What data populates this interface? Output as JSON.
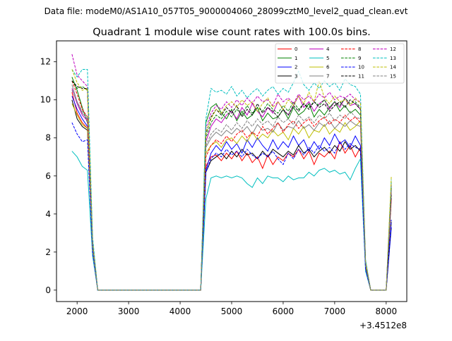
{
  "suptitle": "Data file: modeM0/AS1A10_057T05_9000004060_28099cztM0_level2_quad_clean.evt",
  "chart_data": {
    "type": "line",
    "title": "Quadrant 1 module wise count rates with 100.0s bins.",
    "xlabel": "",
    "ylabel": "",
    "x_offset_label": "+3.4512e8",
    "xlim": [
      1600,
      8400
    ],
    "ylim": [
      -0.6,
      13.1
    ],
    "xticks": [
      2000,
      3000,
      4000,
      5000,
      6000,
      7000,
      8000
    ],
    "yticks": [
      0,
      2,
      4,
      6,
      8,
      10,
      12
    ],
    "grid": false,
    "legend_position": "top-right",
    "legend_columns": 4,
    "x": [
      1900,
      2000,
      2100,
      2200,
      2300,
      2400,
      3000,
      4000,
      4400,
      4500,
      4600,
      4700,
      4800,
      4900,
      5000,
      5100,
      5200,
      5300,
      5400,
      5500,
      5600,
      5700,
      5800,
      5900,
      6000,
      6100,
      6200,
      6300,
      6400,
      6500,
      6600,
      6700,
      6800,
      6900,
      7000,
      7100,
      7200,
      7300,
      7400,
      7500,
      7600,
      7700,
      7800,
      7900,
      8000,
      8100
    ],
    "series": [
      {
        "name": "0",
        "color": "#ff0000",
        "dash": "solid",
        "values": [
          10.4,
          9.3,
          8.8,
          8.5,
          2.3,
          0.0,
          0.0,
          0.0,
          0.0,
          6.5,
          7.0,
          7.1,
          6.8,
          7.2,
          6.9,
          7.3,
          6.8,
          7.2,
          6.7,
          7.0,
          6.4,
          7.1,
          6.6,
          7.0,
          6.8,
          7.2,
          7.0,
          7.4,
          6.9,
          7.3,
          6.6,
          7.2,
          7.0,
          7.3,
          6.9,
          7.8,
          7.2,
          7.6,
          7.0,
          7.5,
          1.2,
          0.0,
          0.0,
          0.0,
          0.0,
          4.8
        ]
      },
      {
        "name": "1",
        "color": "#008000",
        "dash": "solid",
        "values": [
          11.2,
          10.5,
          9.6,
          8.8,
          2.0,
          0.0,
          0.0,
          0.0,
          0.0,
          8.8,
          9.6,
          9.8,
          9.3,
          9.0,
          9.5,
          8.9,
          9.4,
          9.0,
          9.2,
          9.6,
          8.9,
          9.3,
          9.0,
          9.1,
          9.5,
          9.0,
          9.6,
          9.2,
          9.4,
          9.8,
          9.1,
          9.5,
          9.2,
          9.6,
          9.9,
          9.4,
          9.7,
          9.3,
          9.5,
          9.2,
          1.4,
          0.0,
          0.0,
          0.0,
          0.0,
          5.3
        ]
      },
      {
        "name": "2",
        "color": "#0000ff",
        "dash": "solid",
        "values": [
          10.2,
          9.5,
          9.0,
          8.6,
          2.2,
          0.0,
          0.0,
          0.0,
          0.0,
          6.3,
          7.2,
          7.6,
          7.3,
          7.8,
          7.4,
          7.7,
          7.2,
          7.9,
          7.5,
          8.0,
          7.6,
          7.3,
          7.9,
          7.4,
          7.8,
          7.5,
          8.1,
          7.6,
          7.9,
          7.3,
          7.8,
          7.4,
          8.0,
          7.6,
          8.2,
          7.7,
          7.9,
          7.5,
          8.1,
          7.6,
          1.3,
          0.0,
          0.0,
          0.0,
          0.0,
          3.3
        ]
      },
      {
        "name": "3",
        "color": "#000000",
        "dash": "solid",
        "values": [
          10.0,
          9.0,
          8.6,
          8.4,
          2.2,
          0.0,
          0.0,
          0.0,
          0.0,
          6.2,
          6.8,
          7.0,
          7.2,
          6.9,
          7.3,
          7.0,
          7.4,
          7.1,
          7.2,
          6.9,
          7.3,
          7.0,
          7.4,
          7.2,
          7.0,
          7.3,
          7.1,
          7.6,
          7.2,
          7.4,
          7.0,
          7.3,
          7.5,
          7.2,
          7.6,
          7.3,
          7.8,
          7.4,
          7.6,
          7.3,
          1.2,
          0.0,
          0.0,
          0.0,
          0.0,
          3.6
        ]
      },
      {
        "name": "4",
        "color": "#bf00bf",
        "dash": "solid",
        "values": [
          10.6,
          9.8,
          9.2,
          8.9,
          2.4,
          0.0,
          0.0,
          0.0,
          0.0,
          7.8,
          8.6,
          9.0,
          8.8,
          9.2,
          9.4,
          9.0,
          9.6,
          9.2,
          9.8,
          9.4,
          9.1,
          9.6,
          9.3,
          9.9,
          9.5,
          9.2,
          9.7,
          10.2,
          9.6,
          9.9,
          9.4,
          9.8,
          10.0,
          9.5,
          9.9,
          9.6,
          10.1,
          9.7,
          9.8,
          9.5,
          1.5,
          0.0,
          0.0,
          0.0,
          0.0,
          5.2
        ]
      },
      {
        "name": "5",
        "color": "#00bfbf",
        "dash": "solid",
        "values": [
          7.3,
          7.0,
          6.5,
          6.3,
          1.8,
          0.0,
          0.0,
          0.0,
          0.0,
          4.8,
          5.9,
          6.0,
          5.9,
          6.0,
          5.9,
          6.0,
          5.9,
          5.6,
          5.4,
          5.9,
          5.6,
          6.0,
          5.9,
          5.9,
          5.7,
          6.0,
          5.8,
          5.9,
          5.9,
          6.2,
          6.0,
          6.3,
          6.4,
          6.2,
          6.3,
          6.1,
          6.2,
          5.8,
          6.4,
          6.9,
          1.0,
          0.0,
          0.0,
          0.0,
          0.0,
          5.5
        ]
      },
      {
        "name": "6",
        "color": "#bfbf00",
        "dash": "solid",
        "values": [
          9.8,
          9.2,
          8.7,
          8.5,
          2.1,
          0.0,
          0.0,
          0.0,
          0.0,
          7.2,
          7.6,
          7.8,
          7.5,
          7.9,
          8.0,
          7.7,
          8.1,
          7.8,
          8.3,
          7.9,
          8.2,
          8.0,
          8.4,
          8.1,
          8.3,
          7.9,
          8.5,
          8.2,
          8.6,
          8.0,
          8.4,
          8.3,
          8.7,
          8.2,
          8.5,
          8.3,
          8.8,
          8.4,
          8.6,
          8.9,
          1.3,
          0.0,
          0.0,
          0.0,
          0.0,
          5.7
        ]
      },
      {
        "name": "7",
        "color": "#808080",
        "dash": "solid",
        "values": [
          10.8,
          9.9,
          9.3,
          9.0,
          2.3,
          0.0,
          0.0,
          0.0,
          0.0,
          7.5,
          8.0,
          8.3,
          8.1,
          8.4,
          8.2,
          8.5,
          8.3,
          8.6,
          8.2,
          8.7,
          8.4,
          8.5,
          8.3,
          8.8,
          8.4,
          8.6,
          8.5,
          8.9,
          8.5,
          8.7,
          8.4,
          8.8,
          8.6,
          8.9,
          8.5,
          8.8,
          8.6,
          8.9,
          8.7,
          8.6,
          1.4,
          0.0,
          0.0,
          0.0,
          0.0,
          5.0
        ]
      },
      {
        "name": "8",
        "color": "#ff0000",
        "dash": "dashed",
        "values": [
          11.0,
          10.3,
          9.5,
          9.1,
          2.4,
          0.0,
          0.0,
          0.0,
          0.0,
          7.0,
          7.6,
          7.9,
          7.7,
          8.1,
          7.8,
          8.2,
          8.4,
          8.0,
          8.3,
          8.1,
          8.6,
          8.2,
          8.5,
          8.8,
          8.3,
          8.7,
          8.9,
          8.5,
          8.8,
          9.0,
          8.6,
          8.9,
          9.1,
          8.7,
          9.0,
          8.8,
          9.2,
          8.9,
          9.1,
          8.8,
          1.4,
          0.0,
          0.0,
          0.0,
          0.0,
          5.1
        ]
      },
      {
        "name": "9",
        "color": "#008000",
        "dash": "dashed",
        "values": [
          11.0,
          10.6,
          10.7,
          10.5,
          2.6,
          0.0,
          0.0,
          0.0,
          0.0,
          8.0,
          8.8,
          9.2,
          9.0,
          9.4,
          9.1,
          9.5,
          9.2,
          9.7,
          9.3,
          9.6,
          9.4,
          9.8,
          9.5,
          9.3,
          9.7,
          9.4,
          9.9,
          9.5,
          9.8,
          9.6,
          9.9,
          9.7,
          10.0,
          9.6,
          9.9,
          9.7,
          10.1,
          9.8,
          9.9,
          9.6,
          1.5,
          0.0,
          0.0,
          0.0,
          0.0,
          5.4
        ]
      },
      {
        "name": "10",
        "color": "#0000ff",
        "dash": "dashed",
        "values": [
          8.8,
          8.2,
          7.8,
          7.9,
          2.0,
          0.0,
          0.0,
          0.0,
          0.0,
          6.2,
          6.9,
          7.2,
          7.0,
          7.4,
          7.1,
          7.3,
          7.0,
          7.4,
          7.1,
          6.9,
          7.2,
          7.0,
          7.3,
          6.9,
          6.6,
          7.2,
          6.9,
          7.4,
          7.1,
          7.5,
          7.2,
          7.6,
          7.3,
          7.5,
          7.2,
          7.8,
          7.4,
          7.7,
          7.5,
          7.4,
          1.1,
          0.0,
          0.0,
          0.0,
          0.0,
          3.7
        ]
      },
      {
        "name": "11",
        "color": "#000000",
        "dash": "dashed",
        "values": [
          11.0,
          10.7,
          10.6,
          10.6,
          2.5,
          0.0,
          0.0,
          0.0,
          0.0,
          8.2,
          9.1,
          9.5,
          9.2,
          9.6,
          9.3,
          9.7,
          9.1,
          9.5,
          9.2,
          9.8,
          9.3,
          9.6,
          9.4,
          9.1,
          9.5,
          9.2,
          9.7,
          9.4,
          9.8,
          9.5,
          9.9,
          9.6,
          9.8,
          9.4,
          9.7,
          9.9,
          9.6,
          10.0,
          9.8,
          9.5,
          1.5,
          0.0,
          0.0,
          0.0,
          0.0,
          5.0
        ]
      },
      {
        "name": "12",
        "color": "#bf00bf",
        "dash": "dashed",
        "values": [
          12.4,
          11.3,
          11.0,
          10.7,
          2.6,
          0.0,
          0.0,
          0.0,
          0.0,
          8.5,
          9.3,
          9.7,
          9.5,
          9.9,
          9.6,
          10.0,
          9.7,
          10.1,
          9.8,
          10.2,
          9.9,
          10.0,
          9.7,
          10.3,
          9.9,
          10.1,
          9.8,
          10.3,
          10.0,
          10.2,
          9.9,
          10.3,
          10.1,
          10.4,
          10.0,
          10.2,
          10.1,
          10.3,
          10.0,
          9.9,
          1.5,
          0.0,
          0.0,
          0.0,
          0.0,
          5.6
        ]
      },
      {
        "name": "13",
        "color": "#00bfbf",
        "dash": "dashed",
        "values": [
          11.6,
          11.2,
          11.6,
          11.6,
          2.8,
          0.0,
          0.0,
          0.0,
          0.0,
          9.0,
          10.6,
          10.4,
          10.5,
          10.3,
          10.7,
          10.2,
          10.5,
          10.1,
          10.4,
          10.6,
          10.2,
          10.5,
          10.7,
          10.3,
          10.6,
          10.4,
          10.9,
          11.5,
          10.8,
          10.5,
          10.9,
          10.6,
          11.0,
          10.7,
          10.9,
          10.5,
          11.1,
          10.8,
          10.7,
          10.3,
          1.6,
          0.0,
          0.0,
          0.0,
          0.0,
          5.8
        ]
      },
      {
        "name": "14",
        "color": "#bfbf00",
        "dash": "dashed",
        "values": [
          11.6,
          10.9,
          10.5,
          10.6,
          2.5,
          0.0,
          0.0,
          0.0,
          0.0,
          8.3,
          9.0,
          9.5,
          9.3,
          9.7,
          9.9,
          9.6,
          10.0,
          9.7,
          9.9,
          9.4,
          9.8,
          10.1,
          9.6,
          9.9,
          9.5,
          10.0,
          9.7,
          10.2,
          9.8,
          10.4,
          9.9,
          11.0,
          10.1,
          9.8,
          10.2,
          9.9,
          10.0,
          9.7,
          10.1,
          9.8,
          1.5,
          0.0,
          0.0,
          0.0,
          0.0,
          6.0
        ]
      },
      {
        "name": "15",
        "color": "#808080",
        "dash": "dashed",
        "values": [
          10.5,
          9.9,
          9.4,
          9.1,
          2.3,
          0.0,
          0.0,
          0.0,
          0.0,
          7.6,
          8.2,
          8.5,
          8.3,
          8.7,
          8.4,
          8.8,
          8.5,
          8.9,
          8.6,
          9.0,
          8.7,
          8.9,
          8.6,
          9.1,
          8.8,
          9.0,
          8.7,
          9.2,
          8.9,
          9.1,
          8.8,
          9.2,
          9.0,
          9.3,
          8.9,
          9.2,
          9.0,
          9.4,
          9.1,
          9.0,
          1.4,
          0.0,
          0.0,
          0.0,
          0.0,
          5.3
        ]
      }
    ]
  }
}
